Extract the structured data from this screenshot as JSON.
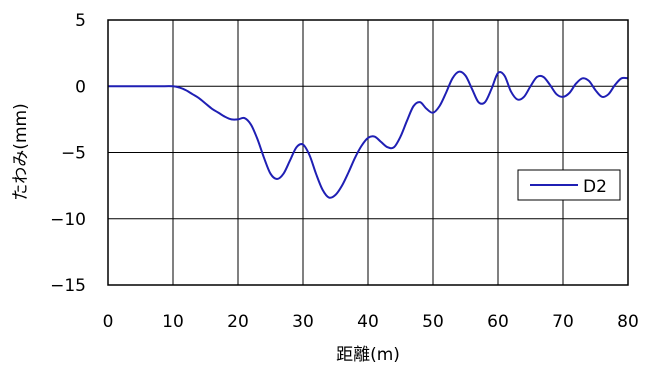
{
  "chart_data": {
    "type": "line",
    "title": "",
    "xlabel": "距離(m)",
    "ylabel": "たわみ(mm)",
    "xlim": [
      0,
      80
    ],
    "ylim": [
      -15,
      5
    ],
    "xticks": [
      0,
      10,
      20,
      30,
      40,
      50,
      60,
      70,
      80
    ],
    "yticks": [
      5,
      0,
      -5,
      -10,
      -15
    ],
    "grid": true,
    "legend_position": "right",
    "colors": {
      "series": "#1f1fb4",
      "grid": "#000000",
      "axis": "#000000"
    },
    "series": [
      {
        "name": "D2",
        "x": [
          0,
          2,
          4,
          6,
          8,
          10,
          11,
          12,
          13,
          14,
          15,
          16,
          17,
          18,
          19,
          20,
          21,
          22,
          23,
          24,
          25,
          26,
          27,
          28,
          29,
          30,
          31,
          32,
          33,
          34,
          35,
          36,
          37,
          38,
          39,
          40,
          41,
          42,
          43,
          44,
          45,
          46,
          47,
          48,
          49,
          50,
          51,
          52,
          53,
          54,
          55,
          56,
          57,
          58,
          59,
          60,
          61,
          62,
          63,
          64,
          65,
          66,
          67,
          68,
          69,
          70,
          71,
          72,
          73,
          74,
          75,
          76,
          77,
          78,
          79,
          80
        ],
        "y": [
          0,
          0,
          0,
          0,
          0,
          0,
          -0.1,
          -0.3,
          -0.6,
          -0.9,
          -1.3,
          -1.7,
          -2.0,
          -2.3,
          -2.5,
          -2.5,
          -2.4,
          -2.9,
          -4.0,
          -5.4,
          -6.6,
          -7.0,
          -6.6,
          -5.6,
          -4.6,
          -4.4,
          -5.2,
          -6.6,
          -7.8,
          -8.4,
          -8.2,
          -7.5,
          -6.5,
          -5.4,
          -4.5,
          -3.9,
          -3.8,
          -4.2,
          -4.6,
          -4.6,
          -3.8,
          -2.6,
          -1.5,
          -1.2,
          -1.7,
          -2.0,
          -1.5,
          -0.5,
          0.6,
          1.1,
          0.8,
          -0.2,
          -1.2,
          -1.2,
          -0.2,
          1.0,
          0.8,
          -0.4,
          -1.0,
          -0.8,
          0.0,
          0.7,
          0.7,
          0.1,
          -0.6,
          -0.8,
          -0.5,
          0.2,
          0.6,
          0.4,
          -0.3,
          -0.8,
          -0.6,
          0.1,
          0.6,
          0.6
        ]
      }
    ]
  }
}
